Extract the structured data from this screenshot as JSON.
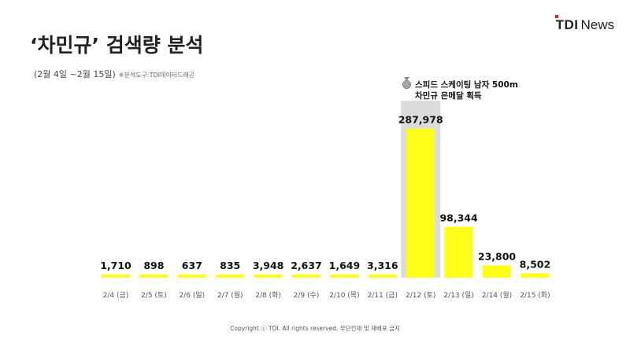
{
  "header": {
    "title": "‘차민규’ 검색량 분석",
    "subtitle": "(2월 4일 ~2월 15일)",
    "source": "※분석도구:TDI데이터드래곤",
    "logo_primary": "TDI",
    "logo_secondary": "News"
  },
  "annotation": {
    "line1": "스피드 스케이팅 남자 500m",
    "line2": "차민규 은메달 획득",
    "icon": "silver-medal-icon"
  },
  "footer": {
    "copyright": "Copyright ⓒ TDI. All rights reserved. 무단전재 및 재배포 금지"
  },
  "colors": {
    "bar": "#ffff1a",
    "highlight_bg": "#dcdcdc",
    "text": "#111111"
  },
  "chart_data": {
    "type": "bar",
    "title": "‘차민규’ 검색량 분석",
    "categories": [
      "2/4 (금)",
      "2/5 (토)",
      "2/6 (일)",
      "2/7 (월)",
      "2/8 (화)",
      "2/9 (수)",
      "2/10 (목)",
      "2/11 (금)",
      "2/12 (토)",
      "2/13 (일)",
      "2/14 (월)",
      "2/15 (화)"
    ],
    "values": [
      1710,
      898,
      637,
      835,
      3948,
      2637,
      1649,
      3316,
      287978,
      98344,
      23800,
      8502
    ],
    "value_labels": [
      "1,710",
      "898",
      "637",
      "835",
      "3,948",
      "2,637",
      "1,649",
      "3,316",
      "287,978",
      "98,344",
      "23,800",
      "8,502"
    ],
    "highlight_category": "2/12 (토)",
    "ylim": [
      0,
      300000
    ],
    "grid": false,
    "legend": "none"
  }
}
